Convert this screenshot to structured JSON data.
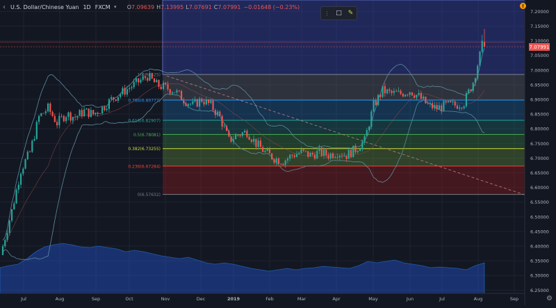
{
  "header": {
    "symbol": "U.S. Dollar/Chinese Yuan",
    "interval": "1D",
    "source": "FXCM",
    "open_label": "O",
    "open": "7.09639",
    "high_label": "H",
    "high": "7.13995",
    "low_label": "L",
    "low": "7.07691",
    "close_label": "C",
    "close": "7.07991",
    "change": "−0.01648 (−0.23%)"
  },
  "price_tag": "7.07991",
  "alert_badge": "!",
  "icons": {
    "collapse": "chevron-icon",
    "dropdown": "dropdown-caret-icon",
    "drag": "drag-handle-icon",
    "frame": "rectangle-icon",
    "pen": "pen-icon",
    "settings": "gear-icon",
    "alert": "alert-icon"
  },
  "colors": {
    "background": "#131722",
    "up": "#26a69a",
    "down": "#ef5350",
    "bollinger": "#5c8d9f",
    "trendline": "#c08080"
  },
  "chart_data": {
    "type": "candlestick",
    "title": "U.S. Dollar/Chinese Yuan 1D FXCM",
    "x_labels": [
      "Jul",
      "Aug",
      "Sep",
      "Oct",
      "Nov",
      "Dec",
      "2019",
      "Feb",
      "Mar",
      "Apr",
      "May",
      "Jun",
      "Jul",
      "Aug",
      "Sep"
    ],
    "y_ticks": [
      "7.20000",
      "7.15000",
      "7.10000",
      "7.05000",
      "7.00000",
      "6.95000",
      "6.90000",
      "6.85000",
      "6.80000",
      "6.75000",
      "6.70000",
      "6.65000",
      "6.60000",
      "6.55000",
      "6.50000",
      "6.45000",
      "6.40000",
      "6.35000",
      "6.30000",
      "6.25000"
    ],
    "ylim": [
      6.22,
      7.22
    ],
    "close_series": [
      {
        "month": "Jul",
        "close": 6.4
      },
      {
        "month": "Jul",
        "close": 6.52
      },
      {
        "month": "Jul",
        "close": 6.66
      },
      {
        "month": "Jul",
        "close": 6.72
      },
      {
        "month": "Aug",
        "close": 6.84
      },
      {
        "month": "Aug",
        "close": 6.87
      },
      {
        "month": "Aug",
        "close": 6.82
      },
      {
        "month": "Aug",
        "close": 6.85
      },
      {
        "month": "Sep",
        "close": 6.84
      },
      {
        "month": "Sep",
        "close": 6.86
      },
      {
        "month": "Sep",
        "close": 6.85
      },
      {
        "month": "Sep",
        "close": 6.87
      },
      {
        "month": "Oct",
        "close": 6.9
      },
      {
        "month": "Oct",
        "close": 6.92
      },
      {
        "month": "Oct",
        "close": 6.94
      },
      {
        "month": "Oct",
        "close": 6.96
      },
      {
        "month": "Nov",
        "close": 6.98
      },
      {
        "month": "Nov",
        "close": 6.95
      },
      {
        "month": "Nov",
        "close": 6.94
      },
      {
        "month": "Nov",
        "close": 6.93
      },
      {
        "month": "Dec",
        "close": 6.9
      },
      {
        "month": "Dec",
        "close": 6.88
      },
      {
        "month": "Dec",
        "close": 6.9
      },
      {
        "month": "Dec",
        "close": 6.88
      },
      {
        "month": "2019",
        "close": 6.84
      },
      {
        "month": "2019",
        "close": 6.76
      },
      {
        "month": "2019",
        "close": 6.78
      },
      {
        "month": "2019",
        "close": 6.79
      },
      {
        "month": "Feb",
        "close": 6.75
      },
      {
        "month": "Feb",
        "close": 6.72
      },
      {
        "month": "Feb",
        "close": 6.7
      },
      {
        "month": "Feb",
        "close": 6.69
      },
      {
        "month": "Mar",
        "close": 6.71
      },
      {
        "month": "Mar",
        "close": 6.72
      },
      {
        "month": "Mar",
        "close": 6.71
      },
      {
        "month": "Mar",
        "close": 6.72
      },
      {
        "month": "Apr",
        "close": 6.71
      },
      {
        "month": "Apr",
        "close": 6.72
      },
      {
        "month": "Apr",
        "close": 6.71
      },
      {
        "month": "Apr",
        "close": 6.73
      },
      {
        "month": "May",
        "close": 6.76
      },
      {
        "month": "May",
        "close": 6.88
      },
      {
        "month": "May",
        "close": 6.93
      },
      {
        "month": "May",
        "close": 6.92
      },
      {
        "month": "Jun",
        "close": 6.92
      },
      {
        "month": "Jun",
        "close": 6.93
      },
      {
        "month": "Jun",
        "close": 6.91
      },
      {
        "month": "Jun",
        "close": 6.88
      },
      {
        "month": "Jul",
        "close": 6.87
      },
      {
        "month": "Jul",
        "close": 6.88
      },
      {
        "month": "Jul",
        "close": 6.88
      },
      {
        "month": "Jul",
        "close": 6.89
      },
      {
        "month": "Aug",
        "close": 6.96
      },
      {
        "month": "Aug",
        "close": 7.08
      }
    ],
    "fibonacci": [
      {
        "label": "1(6.98525)",
        "value": 6.98525,
        "color": "#787b86",
        "fill": "rgba(120,123,134,0.28)"
      },
      {
        "label": "0.786(6.89777)",
        "value": 6.89777,
        "color": "#2196f3",
        "fill": "rgba(33,150,243,0.22)"
      },
      {
        "label": "0.618(6.82907)",
        "value": 6.82907,
        "color": "#26a69a",
        "fill": "rgba(38,166,154,0.22)"
      },
      {
        "label": "0.5(6.78081)",
        "value": 6.78081,
        "color": "#4caf50",
        "fill": "rgba(76,175,80,0.25)"
      },
      {
        "label": "0.382(6.73255)",
        "value": 6.73255,
        "color": "#cddc39",
        "fill": "rgba(124,179,66,0.28)"
      },
      {
        "label": "0.236(6.67284)",
        "value": 6.67284,
        "color": "#f44336",
        "fill": "rgba(183,28,28,0.3)"
      },
      {
        "label": "0(6.57632)",
        "value": 6.57632,
        "color": "#787b86",
        "fill": ""
      }
    ],
    "legend": "none",
    "grid": true
  }
}
